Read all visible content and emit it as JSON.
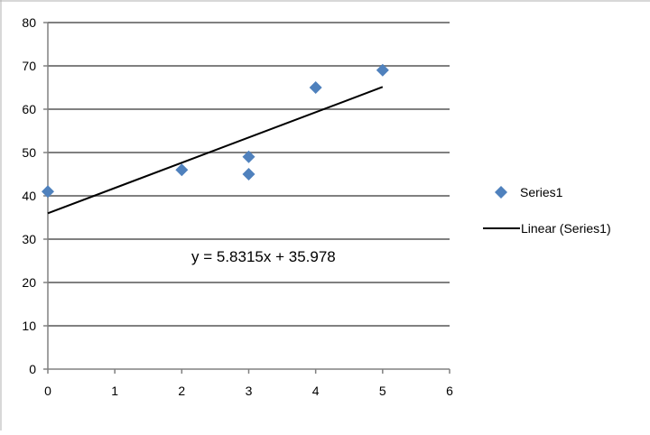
{
  "chart_data": {
    "type": "scatter",
    "title": "",
    "xlabel": "",
    "ylabel": "",
    "xlim": [
      0,
      6
    ],
    "ylim": [
      0,
      80
    ],
    "x_ticks": [
      0,
      1,
      2,
      3,
      4,
      5,
      6
    ],
    "y_ticks": [
      0,
      10,
      20,
      30,
      40,
      50,
      60,
      70,
      80
    ],
    "grid": "horizontal major gridlines",
    "legend_position": "right",
    "series": [
      {
        "name": "Series1",
        "marker": "diamond",
        "color": "#4F81BD",
        "points": [
          {
            "x": 0,
            "y": 41
          },
          {
            "x": 2,
            "y": 46
          },
          {
            "x": 3,
            "y": 49
          },
          {
            "x": 3,
            "y": 45
          },
          {
            "x": 4,
            "y": 65
          },
          {
            "x": 5,
            "y": 69
          }
        ]
      }
    ],
    "trendline": {
      "name": "Linear (Series1)",
      "type": "linear",
      "slope": 5.8315,
      "intercept": 35.978,
      "x_range": [
        0,
        5
      ],
      "color": "#000000",
      "equation_label": "y = 5.8315x + 35.978"
    }
  }
}
